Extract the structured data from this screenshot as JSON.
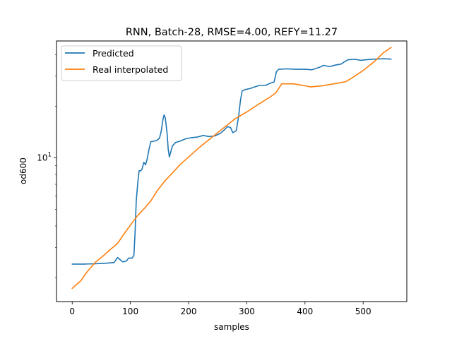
{
  "chart_data": {
    "type": "line",
    "title": "RNN, Batch-28, RMSE=4.00, REFY=11.27",
    "xlabel": "samples",
    "ylabel": "od600",
    "xlim": [
      -27,
      575
    ],
    "ylim": [
      1.45,
      48
    ],
    "y_scale": "log",
    "x_ticks": [
      0,
      100,
      200,
      300,
      400,
      500
    ],
    "y_major_ticks": [
      10
    ],
    "y_major_tick_labels": [
      "10^1"
    ],
    "y_minor_ticks": [
      2,
      3,
      4,
      5,
      6,
      7,
      8,
      9,
      20,
      30,
      40
    ],
    "grid": false,
    "legend_position": "upper-left",
    "series": [
      {
        "name": "Predicted",
        "color": "#1f77b4",
        "points": [
          [
            0,
            2.4
          ],
          [
            20,
            2.4
          ],
          [
            40,
            2.41
          ],
          [
            60,
            2.43
          ],
          [
            72,
            2.45
          ],
          [
            78,
            2.62
          ],
          [
            82,
            2.55
          ],
          [
            87,
            2.47
          ],
          [
            93,
            2.5
          ],
          [
            97,
            2.6
          ],
          [
            103,
            2.6
          ],
          [
            106,
            2.7
          ],
          [
            108,
            3.6
          ],
          [
            110,
            5.6
          ],
          [
            113,
            7.3
          ],
          [
            115,
            8.4
          ],
          [
            118,
            8.4
          ],
          [
            120,
            8.6
          ],
          [
            123,
            9.4
          ],
          [
            126,
            9.1
          ],
          [
            129,
            9.9
          ],
          [
            132,
            11.2
          ],
          [
            135,
            12.4
          ],
          [
            140,
            12.5
          ],
          [
            145,
            12.6
          ],
          [
            150,
            13.0
          ],
          [
            153,
            14.3
          ],
          [
            156,
            16.8
          ],
          [
            158,
            17.8
          ],
          [
            160,
            17.0
          ],
          [
            163,
            14.0
          ],
          [
            165,
            11.2
          ],
          [
            167,
            10.1
          ],
          [
            169,
            10.7
          ],
          [
            172,
            11.7
          ],
          [
            178,
            12.3
          ],
          [
            185,
            12.5
          ],
          [
            195,
            12.9
          ],
          [
            205,
            13.1
          ],
          [
            215,
            13.2
          ],
          [
            225,
            13.5
          ],
          [
            235,
            13.3
          ],
          [
            245,
            13.4
          ],
          [
            255,
            13.9
          ],
          [
            262,
            14.6
          ],
          [
            267,
            15.2
          ],
          [
            272,
            15.0
          ],
          [
            276,
            14.0
          ],
          [
            282,
            14.4
          ],
          [
            286,
            17.5
          ],
          [
            289,
            21.5
          ],
          [
            292,
            24.5
          ],
          [
            297,
            25.0
          ],
          [
            305,
            25.3
          ],
          [
            315,
            26.0
          ],
          [
            322,
            26.4
          ],
          [
            332,
            26.4
          ],
          [
            340,
            27.2
          ],
          [
            347,
            27.7
          ],
          [
            351,
            31.8
          ],
          [
            355,
            32.8
          ],
          [
            368,
            33.0
          ],
          [
            385,
            32.8
          ],
          [
            400,
            32.8
          ],
          [
            412,
            32.6
          ],
          [
            425,
            33.7
          ],
          [
            432,
            34.6
          ],
          [
            442,
            34.0
          ],
          [
            452,
            34.7
          ],
          [
            462,
            35.2
          ],
          [
            468,
            36.3
          ],
          [
            474,
            37.3
          ],
          [
            486,
            37.5
          ],
          [
            496,
            37.0
          ],
          [
            505,
            37.3
          ],
          [
            520,
            37.6
          ],
          [
            535,
            37.8
          ],
          [
            548,
            37.6
          ]
        ]
      },
      {
        "name": "Real interpolated",
        "color": "#ff7f0e",
        "points": [
          [
            0,
            1.73
          ],
          [
            15,
            1.92
          ],
          [
            25,
            2.15
          ],
          [
            40,
            2.46
          ],
          [
            55,
            2.71
          ],
          [
            65,
            2.91
          ],
          [
            78,
            3.17
          ],
          [
            90,
            3.63
          ],
          [
            100,
            4.05
          ],
          [
            112,
            4.58
          ],
          [
            125,
            5.11
          ],
          [
            135,
            5.59
          ],
          [
            145,
            6.35
          ],
          [
            160,
            7.38
          ],
          [
            172,
            8.13
          ],
          [
            185,
            9.1
          ],
          [
            200,
            10.1
          ],
          [
            220,
            11.6
          ],
          [
            250,
            14.0
          ],
          [
            280,
            16.9
          ],
          [
            300,
            18.5
          ],
          [
            320,
            20.5
          ],
          [
            340,
            22.6
          ],
          [
            350,
            23.9
          ],
          [
            360,
            27.0
          ],
          [
            380,
            27.0
          ],
          [
            400,
            26.3
          ],
          [
            410,
            25.9
          ],
          [
            430,
            26.3
          ],
          [
            450,
            27.0
          ],
          [
            470,
            27.8
          ],
          [
            480,
            29.1
          ],
          [
            500,
            32.3
          ],
          [
            520,
            36.6
          ],
          [
            535,
            41.0
          ],
          [
            548,
            44.0
          ]
        ]
      }
    ]
  }
}
